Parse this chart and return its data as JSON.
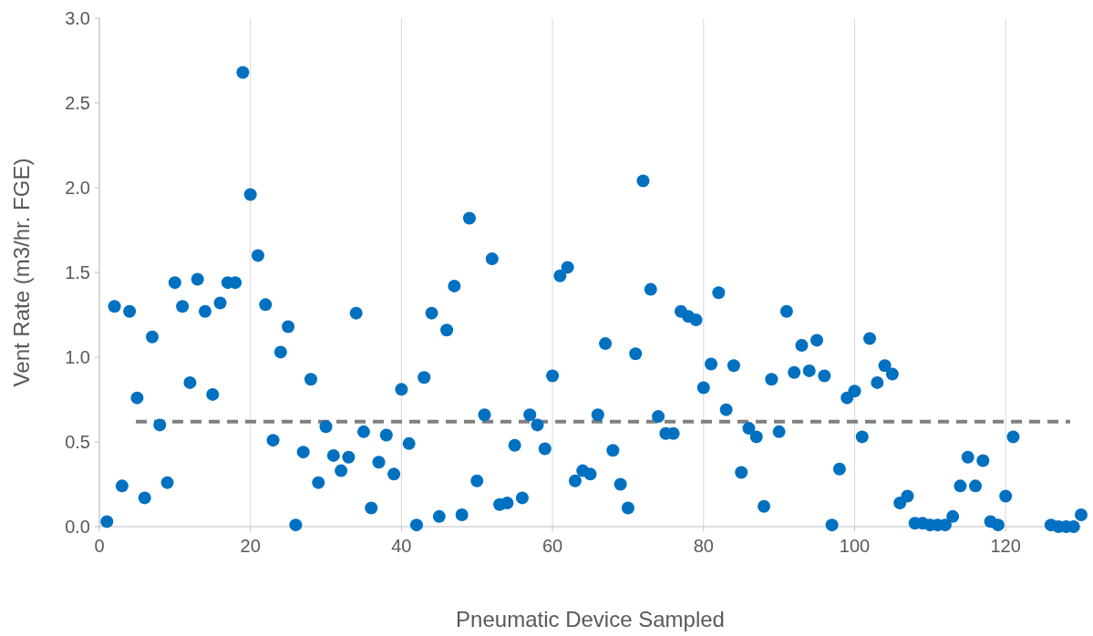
{
  "chart_data": {
    "type": "scatter",
    "xlabel": "Pneumatic Device Sampled",
    "ylabel": "Vent Rate (m3/hr. FGE)",
    "xlim": [
      0,
      130
    ],
    "xticks": [
      0,
      20,
      40,
      60,
      80,
      100,
      120
    ],
    "ylim": [
      0,
      3
    ],
    "yticks": [
      {
        "value": 0,
        "label": "0.0"
      },
      {
        "value": 0.5,
        "label": "0.5"
      },
      {
        "value": 1,
        "label": "1.0"
      },
      {
        "value": 1.5,
        "label": "1.5"
      },
      {
        "value": 2,
        "label": "2.0"
      },
      {
        "value": 2.5,
        "label": "2.5"
      },
      {
        "value": 3,
        "label": "3.0"
      }
    ],
    "grid": "x",
    "marker": "circle",
    "ref_lines": [
      {
        "axis": "y",
        "value": 0.62,
        "color": "#808080",
        "line_style": "dashed"
      }
    ],
    "series": [
      {
        "color": "#0070c0",
        "x": [
          1,
          2,
          3,
          4,
          5,
          6,
          7,
          8,
          9,
          10,
          11,
          12,
          13,
          14,
          15,
          16,
          17,
          18,
          19,
          20,
          21,
          22,
          23,
          24,
          25,
          26,
          27,
          28,
          29,
          30,
          31,
          32,
          33,
          34,
          35,
          36,
          37,
          38,
          39,
          40,
          41,
          42,
          43,
          44,
          45,
          46,
          47,
          48,
          49,
          50,
          51,
          52,
          53,
          54,
          55,
          56,
          57,
          58,
          59,
          60,
          61,
          62,
          63,
          64,
          65,
          66,
          67,
          68,
          69,
          70,
          71,
          72,
          73,
          74,
          75,
          76,
          77,
          78,
          79,
          80,
          81,
          82,
          83,
          84,
          85,
          86,
          87,
          88,
          89,
          90,
          91,
          92,
          93,
          94,
          95,
          96,
          97,
          98,
          99,
          100,
          101,
          102,
          103,
          104,
          105,
          106,
          107,
          108,
          109,
          110,
          111,
          112,
          113,
          114,
          115,
          116,
          117,
          118,
          119,
          120,
          121,
          126,
          127,
          128,
          129,
          130
        ],
        "values": [
          0.03,
          1.3,
          0.24,
          1.27,
          0.76,
          0.17,
          1.12,
          0.6,
          0.26,
          1.44,
          1.3,
          0.85,
          1.46,
          1.27,
          0.78,
          1.32,
          1.44,
          1.44,
          2.68,
          1.96,
          1.6,
          1.31,
          0.51,
          1.03,
          1.18,
          0.01,
          0.44,
          0.87,
          0.26,
          0.59,
          0.42,
          0.33,
          0.41,
          1.26,
          0.56,
          0.11,
          0.38,
          0.54,
          0.31,
          0.81,
          0.49,
          0.01,
          0.88,
          1.26,
          0.06,
          1.16,
          1.42,
          0.07,
          1.82,
          0.27,
          0.66,
          1.58,
          0.13,
          0.14,
          0.48,
          0.17,
          0.66,
          0.6,
          0.46,
          0.89,
          1.48,
          1.53,
          0.27,
          0.33,
          0.31,
          0.66,
          1.08,
          0.45,
          0.25,
          0.11,
          1.02,
          2.04,
          1.4,
          0.65,
          0.55,
          0.55,
          1.27,
          1.24,
          1.22,
          0.82,
          0.96,
          1.38,
          0.69,
          0.95,
          0.32,
          0.58,
          0.53,
          0.12,
          0.87,
          0.56,
          1.27,
          0.91,
          1.07,
          0.92,
          1.1,
          0.89,
          0.01,
          0.34,
          0.76,
          0.8,
          0.53,
          1.11,
          0.85,
          0.95,
          0.9,
          0.14,
          0.18,
          0.02,
          0.02,
          0.01,
          0.01,
          0.01,
          0.06,
          0.24,
          0.41,
          0.24,
          0.39,
          0.03,
          0.01,
          0.18,
          0.53,
          0.01,
          0,
          0,
          0,
          0.07
        ]
      }
    ]
  }
}
